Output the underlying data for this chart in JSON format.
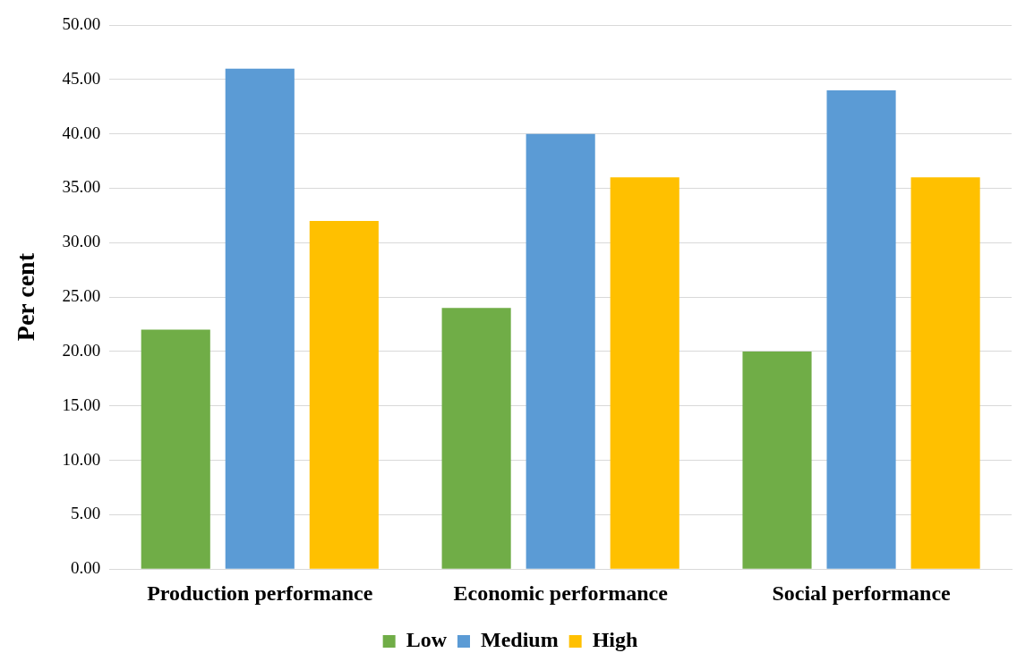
{
  "chart_data": {
    "type": "bar",
    "ylabel": "Per cent",
    "categories": [
      "Production performance",
      "Economic performance",
      "Social performance"
    ],
    "series": [
      {
        "name": "Low",
        "color": "#70ad47",
        "values": [
          22,
          24,
          20
        ]
      },
      {
        "name": "Medium",
        "color": "#5b9bd5",
        "values": [
          46,
          40,
          44
        ]
      },
      {
        "name": "High",
        "color": "#ffc000",
        "values": [
          32,
          36,
          36
        ]
      }
    ],
    "ylim": [
      0,
      50
    ],
    "yticks": [
      {
        "value": 0,
        "label": "0.00"
      },
      {
        "value": 5,
        "label": "5.00"
      },
      {
        "value": 10,
        "label": "10.00"
      },
      {
        "value": 15,
        "label": "15.00"
      },
      {
        "value": 20,
        "label": "20.00"
      },
      {
        "value": 25,
        "label": "25.00"
      },
      {
        "value": 30,
        "label": "30.00"
      },
      {
        "value": 35,
        "label": "35.00"
      },
      {
        "value": 40,
        "label": "40.00"
      },
      {
        "value": 45,
        "label": "45.00"
      },
      {
        "value": 50,
        "label": "50.00"
      }
    ],
    "grid": "y",
    "legend": "bottom"
  }
}
